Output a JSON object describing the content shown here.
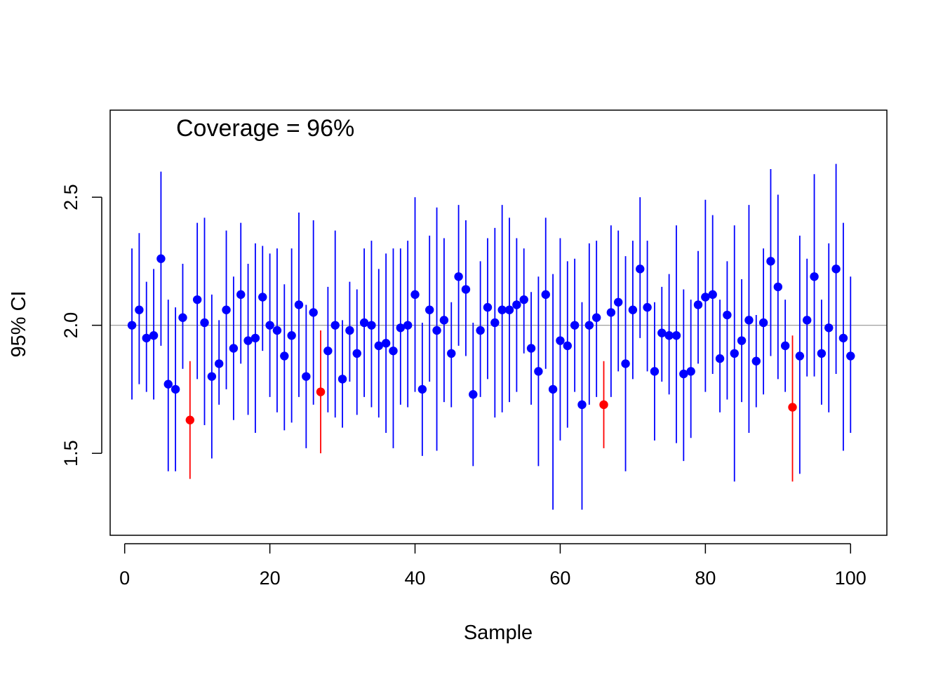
{
  "chart_data": {
    "type": "scatter",
    "title": "",
    "xlabel": "Sample",
    "ylabel": "95% CI",
    "annotation": "Coverage = 96%",
    "xlim": [
      -2,
      105
    ],
    "ylim": [
      1.18,
      2.84
    ],
    "x_ticks": [
      0,
      20,
      40,
      60,
      80,
      100
    ],
    "x_tick_labels": [
      "0",
      "20",
      "40",
      "60",
      "80",
      "100"
    ],
    "y_ticks": [
      1.5,
      2.0,
      2.5
    ],
    "y_tick_labels": [
      "1.5",
      "2.0",
      "2.5"
    ],
    "reference_line": 2.0,
    "grid": false,
    "colors": {
      "covered": "#0000FF",
      "missed": "#FF0000",
      "reference": "#A0A0A0",
      "axis": "#000000"
    },
    "series": [
      {
        "x": [
          1,
          2,
          3,
          4,
          5,
          6,
          7,
          8,
          9,
          10,
          11,
          12,
          13,
          14,
          15,
          16,
          17,
          18,
          19,
          20,
          21,
          22,
          23,
          24,
          25,
          26,
          27,
          28,
          29,
          30,
          31,
          32,
          33,
          34,
          35,
          36,
          37,
          38,
          39,
          40,
          41,
          42,
          43,
          44,
          45,
          46,
          47,
          48,
          49,
          50,
          51,
          52,
          53,
          54,
          55,
          56,
          57,
          58,
          59,
          60,
          61,
          62,
          63,
          64,
          65,
          66,
          67,
          68,
          69,
          70,
          71,
          72,
          73,
          74,
          75,
          76,
          77,
          78,
          79,
          80,
          81,
          82,
          83,
          84,
          85,
          86,
          87,
          88,
          89,
          90,
          91,
          92,
          93,
          94,
          95,
          96,
          97,
          98,
          99,
          100
        ],
        "mean": [
          2.0,
          2.06,
          1.95,
          1.96,
          2.26,
          1.77,
          1.75,
          2.03,
          1.63,
          2.1,
          2.01,
          1.8,
          1.85,
          2.06,
          1.91,
          2.12,
          1.94,
          1.95,
          2.11,
          2.0,
          1.98,
          1.88,
          1.96,
          2.08,
          1.8,
          2.05,
          1.74,
          1.9,
          2.0,
          1.79,
          1.98,
          1.89,
          2.01,
          2.0,
          1.92,
          1.93,
          1.9,
          1.99,
          2.0,
          2.12,
          1.75,
          2.06,
          1.98,
          2.02,
          1.89,
          2.19,
          2.14,
          1.73,
          1.98,
          2.07,
          2.01,
          2.06,
          2.06,
          2.08,
          2.1,
          1.91,
          1.82,
          2.12,
          1.75,
          1.94,
          1.92,
          2.0,
          1.69,
          2.0,
          2.03,
          1.69,
          2.05,
          2.09,
          1.85,
          2.06,
          2.22,
          2.07,
          1.82,
          1.97,
          1.96,
          1.96,
          1.81,
          1.82,
          2.08,
          2.11,
          2.12,
          1.87,
          2.04,
          1.89,
          1.94,
          2.02,
          1.86,
          2.01,
          2.25,
          2.15,
          1.92,
          1.68,
          1.88,
          2.02,
          2.19,
          1.89,
          1.99,
          2.22,
          1.95,
          1.88
        ],
        "lower": [
          1.71,
          1.77,
          1.74,
          1.71,
          1.92,
          1.43,
          1.43,
          1.83,
          1.4,
          1.79,
          1.61,
          1.48,
          1.69,
          1.75,
          1.63,
          1.85,
          1.65,
          1.58,
          1.9,
          1.72,
          1.66,
          1.59,
          1.62,
          1.72,
          1.52,
          1.69,
          1.5,
          1.66,
          1.64,
          1.6,
          1.78,
          1.65,
          1.72,
          1.68,
          1.64,
          1.58,
          1.52,
          1.69,
          1.68,
          1.74,
          1.49,
          1.78,
          1.51,
          1.7,
          1.68,
          1.92,
          1.88,
          1.45,
          1.72,
          1.79,
          1.64,
          1.66,
          1.7,
          1.74,
          1.89,
          1.69,
          1.45,
          1.83,
          1.28,
          1.55,
          1.6,
          1.74,
          1.28,
          1.69,
          1.72,
          1.52,
          1.72,
          1.82,
          1.43,
          1.79,
          1.95,
          1.82,
          1.55,
          1.78,
          1.73,
          1.54,
          1.47,
          1.56,
          1.85,
          1.74,
          1.81,
          1.66,
          1.71,
          1.39,
          1.7,
          1.58,
          1.68,
          1.73,
          1.88,
          1.79,
          1.74,
          1.39,
          1.42,
          1.8,
          1.8,
          1.69,
          1.66,
          1.81,
          1.51,
          1.58
        ],
        "upper": [
          2.3,
          2.36,
          2.17,
          2.22,
          2.6,
          2.1,
          2.07,
          2.24,
          1.86,
          2.4,
          2.42,
          2.12,
          2.02,
          2.37,
          2.19,
          2.4,
          2.24,
          2.32,
          2.31,
          2.28,
          2.3,
          2.16,
          2.3,
          2.44,
          2.08,
          2.41,
          1.98,
          2.15,
          2.37,
          2.02,
          2.17,
          2.14,
          2.3,
          2.33,
          2.22,
          2.28,
          2.3,
          2.3,
          2.33,
          2.5,
          2.01,
          2.35,
          2.46,
          2.34,
          2.09,
          2.47,
          2.41,
          2.01,
          2.25,
          2.34,
          2.38,
          2.47,
          2.42,
          2.34,
          2.3,
          2.13,
          2.19,
          2.42,
          2.2,
          2.34,
          2.25,
          2.26,
          2.09,
          2.32,
          2.33,
          1.86,
          2.39,
          2.37,
          2.27,
          2.33,
          2.5,
          2.33,
          2.09,
          2.15,
          2.2,
          2.39,
          2.14,
          2.1,
          2.29,
          2.49,
          2.43,
          2.1,
          2.25,
          2.39,
          2.18,
          2.47,
          2.04,
          2.3,
          2.61,
          2.51,
          2.1,
          1.96,
          2.35,
          2.26,
          2.59,
          2.1,
          2.32,
          2.63,
          2.4,
          2.19
        ],
        "missed": [
          9,
          27,
          66,
          92
        ]
      }
    ]
  }
}
